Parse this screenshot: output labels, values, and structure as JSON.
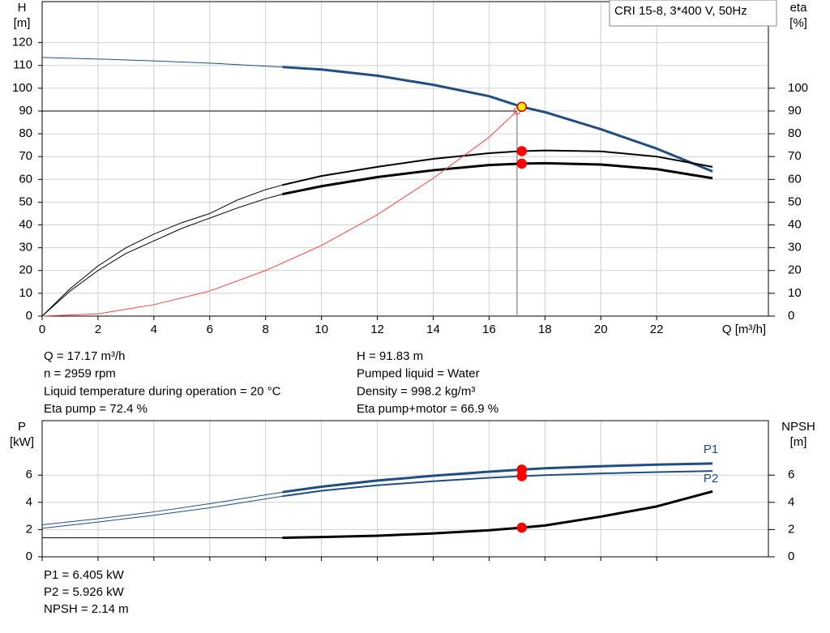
{
  "chart_data": [
    {
      "type": "line",
      "title": "CRI 15-8, 3*400 V, 50Hz",
      "x_label": "Q [m³/h]",
      "y_label": [
        "H",
        "[m]"
      ],
      "y2_label": [
        "eta",
        "[%]"
      ],
      "xlim": [
        0,
        26
      ],
      "xticks": [
        0,
        2,
        4,
        6,
        8,
        10,
        12,
        14,
        16,
        18,
        20,
        22
      ],
      "ylim": [
        0,
        138
      ],
      "yticks": [
        0,
        10,
        20,
        30,
        40,
        50,
        60,
        70,
        80,
        90,
        100,
        110,
        120
      ],
      "y2lim": [
        0,
        138
      ],
      "y2ticks": [
        0,
        10,
        20,
        30,
        40,
        50,
        60,
        70,
        80,
        90,
        100
      ],
      "grid": true,
      "duty_point": {
        "x": 17,
        "y": 90
      },
      "series": [
        {
          "color": "#1f4e85",
          "line_width": 1,
          "x": [
            0,
            2,
            4,
            6,
            8,
            8.6
          ],
          "values": [
            113.5,
            112.8,
            112,
            111,
            109.7,
            109.3
          ]
        },
        {
          "color": "#1f4e85",
          "line_width": 3,
          "x": [
            8.6,
            10,
            12,
            14,
            16,
            17.17,
            18,
            20,
            22,
            24
          ],
          "values": [
            109.3,
            108.2,
            105.5,
            101.5,
            96.5,
            91.83,
            89.5,
            82,
            73.5,
            63.5
          ]
        },
        {
          "color": "#000000",
          "line_width": 1,
          "axis": "y2",
          "x": [
            0,
            1,
            2,
            3,
            4,
            5,
            6,
            7,
            8,
            8.6
          ],
          "values": [
            0,
            12,
            22,
            30,
            36,
            41,
            45,
            51,
            55.5,
            57.5
          ]
        },
        {
          "color": "#000000",
          "line_width": 2,
          "axis": "y2",
          "x": [
            8.6,
            10,
            12,
            14,
            16,
            17.17,
            18,
            20,
            22,
            24
          ],
          "values": [
            57.5,
            61.5,
            65.5,
            69,
            71.5,
            72.4,
            72.7,
            72.3,
            70,
            65.5
          ]
        },
        {
          "color": "#000000",
          "line_width": 1,
          "axis": "y2",
          "x": [
            0,
            1,
            2,
            3,
            4,
            5,
            6,
            7,
            8,
            8.6
          ],
          "values": [
            0,
            11,
            20,
            27.5,
            33,
            38.5,
            43,
            47.5,
            51.5,
            53.5
          ]
        },
        {
          "color": "#000000",
          "line_width": 3,
          "axis": "y2",
          "x": [
            8.6,
            10,
            12,
            14,
            16,
            17.17,
            18,
            20,
            22,
            24
          ],
          "values": [
            53.5,
            57,
            61,
            64,
            66.3,
            66.9,
            67.1,
            66.5,
            64.5,
            60.5
          ]
        },
        {
          "color": "#ff4040",
          "line_width": 1,
          "x": [
            0,
            2,
            4,
            6,
            8,
            10,
            12,
            14,
            16,
            17
          ],
          "values": [
            0,
            1,
            5,
            11,
            20,
            31,
            44.5,
            60.5,
            78.5,
            90
          ]
        }
      ],
      "points": [
        {
          "x": 17.17,
          "y": 91.83,
          "color": "#ffee00",
          "stroke": "#e00000"
        },
        {
          "x": 17.17,
          "y": 72.4,
          "axis": "y2",
          "color": "#ff0000",
          "stroke": "#ff0000"
        },
        {
          "x": 17.17,
          "y": 66.9,
          "axis": "y2",
          "color": "#ff0000",
          "stroke": "#ff0000"
        }
      ]
    },
    {
      "type": "line",
      "y_label": [
        "P",
        "[kW]"
      ],
      "y2_label": [
        "NPSH",
        "[m]"
      ],
      "xlim": [
        0,
        26
      ],
      "xticks": [
        0,
        2,
        4,
        6,
        8,
        10,
        12,
        14,
        16,
        18,
        20,
        22
      ],
      "ylim": [
        0,
        10
      ],
      "yticks": [
        0,
        2,
        4,
        6
      ],
      "y2lim": [
        0,
        10
      ],
      "y2ticks": [
        0,
        2,
        4,
        6
      ],
      "grid": true,
      "series": [
        {
          "color": "#1f4e85",
          "line_width": 1,
          "x": [
            0,
            2,
            4,
            6,
            8.6
          ],
          "values": [
            2.35,
            2.8,
            3.3,
            3.9,
            4.75
          ]
        },
        {
          "name": "P1",
          "color": "#1f4e85",
          "line_width": 3,
          "x": [
            8.6,
            10,
            12,
            14,
            16,
            17.17,
            18,
            20,
            22,
            24
          ],
          "values": [
            4.75,
            5.15,
            5.6,
            5.95,
            6.25,
            6.405,
            6.5,
            6.65,
            6.77,
            6.85
          ]
        },
        {
          "color": "#1f4e85",
          "line_width": 1,
          "x": [
            0,
            2,
            4,
            6,
            8.6
          ],
          "values": [
            2.1,
            2.55,
            3.05,
            3.6,
            4.45
          ]
        },
        {
          "name": "P2",
          "color": "#1f4e85",
          "line_width": 2,
          "x": [
            8.6,
            10,
            12,
            14,
            16,
            17.17,
            18,
            20,
            22,
            24
          ],
          "values": [
            4.45,
            4.85,
            5.25,
            5.55,
            5.8,
            5.926,
            6,
            6.12,
            6.22,
            6.3
          ]
        },
        {
          "color": "#000000",
          "line_width": 1,
          "axis": "y2",
          "x": [
            0,
            8.6
          ],
          "values": [
            1.4,
            1.4
          ]
        },
        {
          "color": "#000000",
          "line_width": 3,
          "axis": "y2",
          "x": [
            8.6,
            10,
            12,
            14,
            16,
            17.17,
            18,
            20,
            22,
            24
          ],
          "values": [
            1.4,
            1.45,
            1.55,
            1.72,
            1.95,
            2.14,
            2.3,
            2.95,
            3.7,
            4.8
          ]
        }
      ],
      "points": [
        {
          "x": 17.17,
          "y": 6.405,
          "color": "#ff0000",
          "stroke": "#ff0000"
        },
        {
          "x": 17.17,
          "y": 5.926,
          "color": "#ff0000",
          "stroke": "#ff0000"
        },
        {
          "x": 17.17,
          "y": 2.14,
          "axis": "y2",
          "color": "#ff0000",
          "stroke": "#ff0000"
        }
      ]
    }
  ],
  "readouts": {
    "left": [
      "Q = 17.17 m³/h",
      "n = 2959 rpm",
      "Liquid temperature during operation = 20 °C",
      "Eta pump = 72.4 %"
    ],
    "right": [
      "H = 91.83 m",
      "Pumped liquid = Water",
      "Density = 998.2 kg/m³",
      "Eta pump+motor = 66.9 %"
    ],
    "bottom": [
      "P1 = 6.405 kW",
      "P2 = 5.926 kW",
      "NPSH = 2.14 m"
    ]
  }
}
